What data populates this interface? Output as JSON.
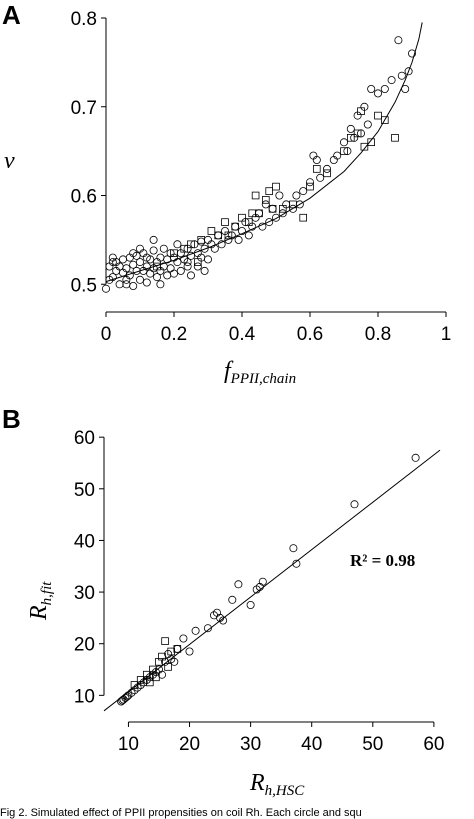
{
  "caption": "Fig 2. Simulated effect of PPII propensities on coil Rh. Each circle and squ",
  "chart_data": [
    {
      "panel": "A",
      "type": "scatter",
      "ylabel": "ν",
      "xlabel_main": "f",
      "xlabel_sub": "PPII,chain",
      "xlim": [
        0,
        1
      ],
      "ylim": [
        0.48,
        0.8
      ],
      "xticks": [
        "0",
        "0.2",
        "0.4",
        "0.6",
        "0.8",
        "1"
      ],
      "yticks": [
        "0.5",
        "0.6",
        "0.7",
        "0.8"
      ],
      "fit": {
        "type": "curve",
        "x": [
          0.0,
          0.1,
          0.2,
          0.3,
          0.4,
          0.5,
          0.6,
          0.7,
          0.75,
          0.8,
          0.85,
          0.88,
          0.9,
          0.92,
          0.93
        ],
        "y": [
          0.503,
          0.515,
          0.527,
          0.541,
          0.557,
          0.574,
          0.597,
          0.627,
          0.648,
          0.672,
          0.705,
          0.73,
          0.75,
          0.776,
          0.795
        ]
      },
      "series": [
        {
          "marker": "circle",
          "x": [
            0.0,
            0.01,
            0.02,
            0.02,
            0.03,
            0.03,
            0.04,
            0.04,
            0.05,
            0.05,
            0.06,
            0.06,
            0.07,
            0.07,
            0.08,
            0.08,
            0.09,
            0.09,
            0.1,
            0.1,
            0.11,
            0.11,
            0.12,
            0.12,
            0.13,
            0.13,
            0.14,
            0.14,
            0.15,
            0.15,
            0.16,
            0.16,
            0.17,
            0.17,
            0.18,
            0.18,
            0.19,
            0.19,
            0.2,
            0.2,
            0.21,
            0.21,
            0.22,
            0.22,
            0.23,
            0.24,
            0.24,
            0.25,
            0.25,
            0.26,
            0.27,
            0.27,
            0.28,
            0.28,
            0.29,
            0.3,
            0.3,
            0.31,
            0.32,
            0.33,
            0.34,
            0.35,
            0.36,
            0.37,
            0.38,
            0.39,
            0.4,
            0.41,
            0.42,
            0.43,
            0.44,
            0.45,
            0.46,
            0.47,
            0.48,
            0.49,
            0.5,
            0.51,
            0.52,
            0.53,
            0.55,
            0.56,
            0.57,
            0.58,
            0.6,
            0.61,
            0.62,
            0.63,
            0.65,
            0.67,
            0.68,
            0.7,
            0.71,
            0.72,
            0.73,
            0.74,
            0.75,
            0.76,
            0.77,
            0.78,
            0.8,
            0.82,
            0.84,
            0.86,
            0.87,
            0.88,
            0.89,
            0.9,
            0.1,
            0.14,
            0.06,
            0.02,
            0.01,
            0.08,
            0.16,
            0.12,
            0.24,
            0.29
          ],
          "y": [
            0.495,
            0.52,
            0.53,
            0.508,
            0.515,
            0.525,
            0.52,
            0.5,
            0.513,
            0.528,
            0.518,
            0.505,
            0.53,
            0.51,
            0.522,
            0.498,
            0.532,
            0.515,
            0.525,
            0.505,
            0.535,
            0.515,
            0.52,
            0.502,
            0.528,
            0.512,
            0.538,
            0.518,
            0.525,
            0.508,
            0.53,
            0.515,
            0.54,
            0.52,
            0.528,
            0.51,
            0.535,
            0.518,
            0.53,
            0.512,
            0.545,
            0.525,
            0.535,
            0.515,
            0.528,
            0.54,
            0.52,
            0.532,
            0.51,
            0.545,
            0.535,
            0.52,
            0.548,
            0.53,
            0.54,
            0.55,
            0.528,
            0.545,
            0.54,
            0.555,
            0.545,
            0.56,
            0.55,
            0.555,
            0.565,
            0.55,
            0.56,
            0.57,
            0.555,
            0.565,
            0.575,
            0.58,
            0.565,
            0.59,
            0.57,
            0.585,
            0.575,
            0.6,
            0.58,
            0.59,
            0.585,
            0.6,
            0.59,
            0.605,
            0.615,
            0.645,
            0.64,
            0.62,
            0.63,
            0.64,
            0.645,
            0.66,
            0.65,
            0.675,
            0.665,
            0.69,
            0.67,
            0.7,
            0.68,
            0.72,
            0.715,
            0.72,
            0.73,
            0.775,
            0.735,
            0.72,
            0.74,
            0.76,
            0.54,
            0.55,
            0.5,
            0.525,
            0.505,
            0.535,
            0.5,
            0.53,
            0.525,
            0.515
          ]
        },
        {
          "marker": "square",
          "x": [
            0.15,
            0.2,
            0.25,
            0.28,
            0.31,
            0.33,
            0.35,
            0.38,
            0.4,
            0.42,
            0.44,
            0.45,
            0.47,
            0.48,
            0.49,
            0.5,
            0.52,
            0.55,
            0.58,
            0.6,
            0.62,
            0.65,
            0.7,
            0.72,
            0.74,
            0.75,
            0.76,
            0.78,
            0.8,
            0.82,
            0.85,
            0.23,
            0.27,
            0.36,
            0.43
          ],
          "y": [
            0.52,
            0.535,
            0.545,
            0.55,
            0.56,
            0.555,
            0.57,
            0.565,
            0.575,
            0.57,
            0.6,
            0.58,
            0.595,
            0.605,
            0.585,
            0.61,
            0.585,
            0.59,
            0.575,
            0.61,
            0.63,
            0.625,
            0.65,
            0.665,
            0.67,
            0.695,
            0.655,
            0.66,
            0.69,
            0.685,
            0.665,
            0.54,
            0.525,
            0.555,
            0.58
          ]
        }
      ]
    },
    {
      "panel": "B",
      "type": "scatter",
      "annotation": "R² = 0.98",
      "ylabel_main": "R",
      "ylabel_sub": "h,fit",
      "xlabel_main": "R",
      "xlabel_sub": "h,HSC",
      "xlim": [
        6,
        61
      ],
      "ylim": [
        6,
        61
      ],
      "xticks": [
        "10",
        "20",
        "30",
        "40",
        "50",
        "60"
      ],
      "yticks": [
        "10",
        "20",
        "30",
        "40",
        "50",
        "60"
      ],
      "fit": {
        "type": "line",
        "x": [
          6,
          61
        ],
        "y": [
          7,
          57.5
        ]
      },
      "series": [
        {
          "marker": "circle",
          "x": [
            57,
            47,
            37,
            37.5,
            32,
            30,
            31.5,
            28,
            27,
            25,
            24.5,
            24,
            23,
            21,
            20,
            19,
            18,
            17,
            16,
            15,
            14.5,
            14,
            13.5,
            13,
            12.5,
            12,
            11.5,
            11,
            10.5,
            10,
            9.8,
            9.5,
            9.2,
            9,
            8.8,
            31,
            25.5,
            17.5,
            16.5,
            15.5
          ],
          "y": [
            56,
            47,
            38.5,
            35.5,
            32,
            27.5,
            31,
            31.5,
            28.5,
            25,
            26,
            25.5,
            23,
            22.5,
            18.5,
            21,
            19,
            17,
            16.5,
            15,
            14.5,
            14,
            13.5,
            13,
            12.5,
            12,
            11.5,
            11,
            10.5,
            10,
            9.8,
            9.5,
            9.2,
            9,
            8.8,
            30.5,
            24.5,
            16.5,
            18,
            14
          ]
        },
        {
          "marker": "square",
          "x": [
            16,
            17,
            18,
            15,
            14,
            13,
            12,
            11,
            15.5,
            16.5,
            14.5,
            13.5
          ],
          "y": [
            20.5,
            18.5,
            19,
            16.5,
            15,
            14,
            13,
            12,
            17.5,
            15.5,
            13.5,
            12.5
          ]
        }
      ]
    }
  ]
}
